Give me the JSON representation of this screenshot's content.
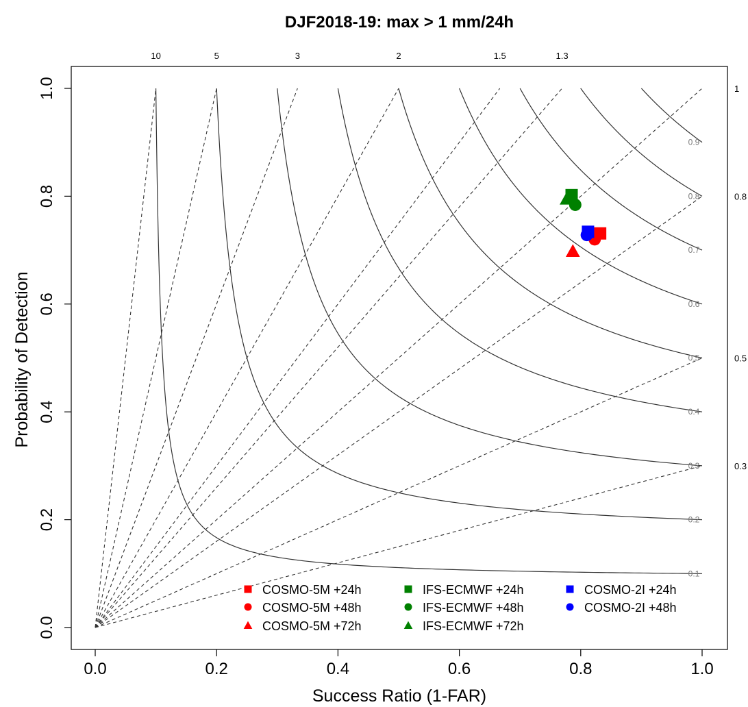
{
  "chart_data": {
    "type": "scatter",
    "title": "DJF2018-19: max > 1 mm/24h",
    "xlabel": "Success Ratio (1-FAR)",
    "ylabel": "Probability of Detection",
    "xlim": [
      0,
      1
    ],
    "ylim": [
      0,
      1
    ],
    "x_ticks": [
      "0.0",
      "0.2",
      "0.4",
      "0.6",
      "0.8",
      "1.0"
    ],
    "y_ticks": [
      "0.0",
      "0.2",
      "0.4",
      "0.6",
      "0.8",
      "1.0"
    ],
    "bias_lines": [
      {
        "bias": 10,
        "label": "10",
        "side": "top"
      },
      {
        "bias": 5,
        "label": "5",
        "side": "top"
      },
      {
        "bias": 3,
        "label": "3",
        "side": "top"
      },
      {
        "bias": 2,
        "label": "2",
        "side": "top"
      },
      {
        "bias": 1.5,
        "label": "1.5",
        "side": "top"
      },
      {
        "bias": 1.3,
        "label": "1.3",
        "side": "top"
      },
      {
        "bias": 1,
        "label": "1",
        "side": "right"
      },
      {
        "bias": 0.8,
        "label": "0.8",
        "side": "right"
      },
      {
        "bias": 0.5,
        "label": "0.5",
        "side": "right"
      },
      {
        "bias": 0.3,
        "label": "0.3",
        "side": "right"
      }
    ],
    "csi_contours": [
      {
        "csi": 0.1,
        "label": "0.1"
      },
      {
        "csi": 0.2,
        "label": "0.2"
      },
      {
        "csi": 0.3,
        "label": "0.3"
      },
      {
        "csi": 0.4,
        "label": "0.4"
      },
      {
        "csi": 0.5,
        "label": "0.5"
      },
      {
        "csi": 0.6,
        "label": "0.6"
      },
      {
        "csi": 0.7,
        "label": "0.7"
      },
      {
        "csi": 0.8,
        "label": "0.8"
      },
      {
        "csi": 0.9,
        "label": "0.9"
      }
    ],
    "series": [
      {
        "name": "COSMO-5M +24h",
        "color": "#ff0000",
        "shape": "square",
        "x": 0.832,
        "y": 0.731
      },
      {
        "name": "COSMO-5M +48h",
        "color": "#ff0000",
        "shape": "circle",
        "x": 0.823,
        "y": 0.72
      },
      {
        "name": "COSMO-5M +72h",
        "color": "#ff0000",
        "shape": "triangle",
        "x": 0.787,
        "y": 0.698
      },
      {
        "name": "IFS-ECMWF +24h",
        "color": "#008000",
        "shape": "square",
        "x": 0.785,
        "y": 0.802
      },
      {
        "name": "IFS-ECMWF +48h",
        "color": "#008000",
        "shape": "circle",
        "x": 0.791,
        "y": 0.784
      },
      {
        "name": "IFS-ECMWF +72h",
        "color": "#008000",
        "shape": "triangle",
        "x": 0.777,
        "y": 0.795
      },
      {
        "name": "COSMO-2I +24h",
        "color": "#0000ff",
        "shape": "square",
        "x": 0.812,
        "y": 0.734
      },
      {
        "name": "COSMO-2I +48h",
        "color": "#0000ff",
        "shape": "circle",
        "x": 0.81,
        "y": 0.728
      }
    ],
    "legend_position": "bottom-right",
    "grid": false
  }
}
